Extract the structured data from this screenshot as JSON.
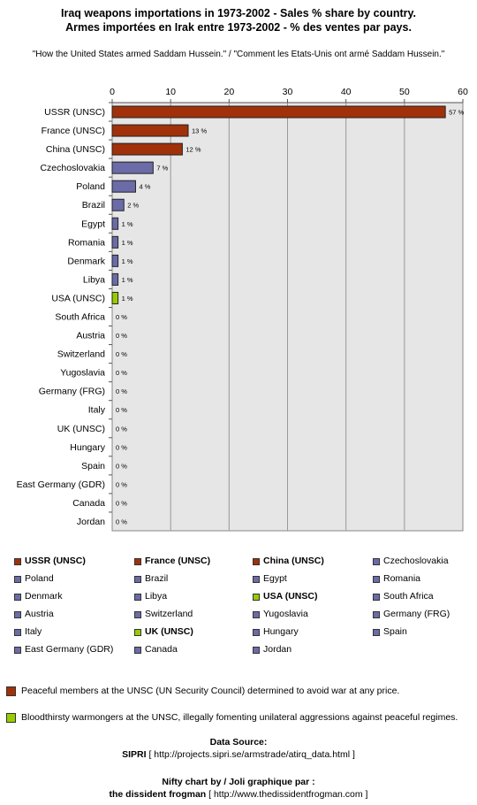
{
  "title_line1": "Iraq weapons importations in 1973-2002 - Sales % share by country.",
  "title_line2": "Armes importées en Irak entre 1973-2002 - % des ventes par pays.",
  "subtitle": "\"How the United States armed Saddam Hussein.\" / \"Comment les Etats-Unis ont armé Saddam Hussein.\"",
  "colors": {
    "unsc_peaceful": "#a0310a",
    "unsc_warmonger": "#99cc00",
    "other": "#6b6ba8",
    "plot_bg": "#e6e6e6"
  },
  "chart_data": {
    "type": "bar",
    "orientation": "horizontal",
    "xlim": [
      0,
      60
    ],
    "xticks": [
      0,
      10,
      20,
      30,
      40,
      50,
      60
    ],
    "grid": true,
    "categories": [
      "USSR (UNSC)",
      "France (UNSC)",
      "China (UNSC)",
      "Czechoslovakia",
      "Poland",
      "Brazil",
      "Egypt",
      "Romania",
      "Denmark",
      "Libya",
      "USA (UNSC)",
      "South Africa",
      "Austria",
      "Switzerland",
      "Yugoslavia",
      "Germany (FRG)",
      "Italy",
      "UK (UNSC)",
      "Hungary",
      "Spain",
      "East Germany (GDR)",
      "Canada",
      "Jordan"
    ],
    "values": [
      57,
      13,
      12,
      7,
      4,
      2,
      1,
      1,
      1,
      1,
      1,
      0,
      0,
      0,
      0,
      0,
      0,
      0,
      0,
      0,
      0,
      0,
      0
    ],
    "data_labels": [
      "57 %",
      "13 %",
      "12 %",
      "7 %",
      "4 %",
      "2 %",
      "1 %",
      "1 %",
      "1 %",
      "1 %",
      "1 %",
      "0 %",
      "0 %",
      "0 %",
      "0 %",
      "0 %",
      "0 %",
      "0 %",
      "0 %",
      "0 %",
      "0 %",
      "0 %",
      "0 %"
    ],
    "groups": [
      "unsc_peaceful",
      "unsc_peaceful",
      "unsc_peaceful",
      "other",
      "other",
      "other",
      "other",
      "other",
      "other",
      "other",
      "unsc_warmonger",
      "other",
      "other",
      "other",
      "other",
      "other",
      "other",
      "unsc_warmonger",
      "other",
      "other",
      "other",
      "other",
      "other"
    ],
    "legend_placement": "bottom"
  },
  "notes": {
    "peaceful": "Peaceful members at the UNSC (UN Security Council) determined to avoid war at any price.",
    "warmongers": "Bloodthirsty warmongers at the UNSC, illegally fomenting unilateral aggressions against peaceful regimes."
  },
  "source": {
    "label": "Data Source:",
    "name": "SIPRI",
    "url": "[ http://projects.sipri.se/armstrade/atirq_data.html ]"
  },
  "credit": {
    "label": "Nifty chart by / Joli graphique par :",
    "name": "the dissident frogman",
    "url": "[ http://www.thedissidentfrogman.com ]"
  }
}
